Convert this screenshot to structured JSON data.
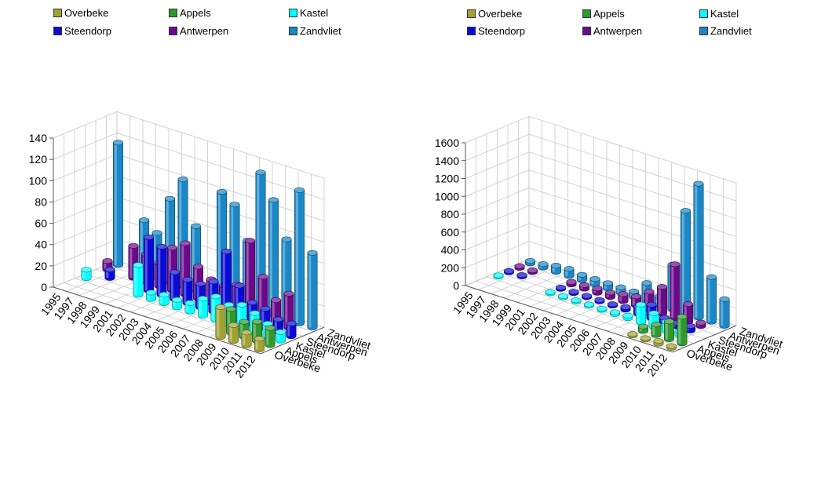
{
  "series_colors": {
    "Overbeke": "#a2a232",
    "Appels": "#2e9a2e",
    "Kastel": "#00ffff",
    "Steendorp": "#0a0ad6",
    "Antwerpen": "#6a0a8a",
    "Zandvliet": "#1a87c6"
  },
  "chart_data": [
    {
      "type": "bar",
      "subtype": "3d-cylinder",
      "legend": [
        "Overbeke",
        "Appels",
        "Kastel",
        "Steendorp",
        "Antwerpen",
        "Zandvliet"
      ],
      "legend_position": "top",
      "x_categories": [
        "1995",
        "1997",
        "1998",
        "1999",
        "2001",
        "2002",
        "2003",
        "2004",
        "2005",
        "2006",
        "2007",
        "2008",
        "2009",
        "2010",
        "2011",
        "2012"
      ],
      "depth_categories": [
        "Overbeke",
        "Appels",
        "Kastel",
        "Steendorp",
        "Antwerpen",
        "Zandvliet"
      ],
      "y_ticks": [
        0,
        20,
        40,
        60,
        80,
        100,
        120,
        140
      ],
      "ylim": [
        0,
        140
      ],
      "grid": true,
      "series": [
        {
          "name": "Overbeke",
          "values": [
            null,
            null,
            null,
            null,
            null,
            null,
            null,
            null,
            null,
            null,
            null,
            null,
            28,
            15,
            12,
            10
          ]
        },
        {
          "name": "Appels",
          "values": [
            null,
            null,
            null,
            null,
            null,
            null,
            null,
            null,
            null,
            null,
            null,
            null,
            22,
            14,
            18,
            16
          ]
        },
        {
          "name": "Kastel",
          "values": [
            8,
            null,
            null,
            null,
            28,
            6,
            8,
            7,
            8,
            16,
            22,
            18,
            22,
            18,
            12,
            8
          ]
        },
        {
          "name": "Steendorp",
          "values": [
            null,
            8,
            null,
            null,
            50,
            45,
            25,
            22,
            22,
            28,
            60,
            32,
            20,
            18,
            12,
            12
          ]
        },
        {
          "name": "Antwerpen",
          "values": [
            8,
            null,
            30,
            26,
            22,
            40,
            48,
            30,
            22,
            20,
            25,
            70,
            40,
            22,
            32,
            null
          ]
        },
        {
          "name": "Zandvliet",
          "values": [
            115,
            null,
            50,
            42,
            78,
            100,
            60,
            null,
            100,
            92,
            62,
            130,
            108,
            75,
            125,
            70
          ]
        }
      ]
    },
    {
      "type": "bar",
      "subtype": "3d-cylinder",
      "legend": [
        "Overbeke",
        "Appels",
        "Kastel",
        "Steendorp",
        "Antwerpen",
        "Zandvliet"
      ],
      "legend_position": "top",
      "x_categories": [
        "1995",
        "1997",
        "1998",
        "1999",
        "2001",
        "2002",
        "2003",
        "2004",
        "2005",
        "2006",
        "2007",
        "2008",
        "2009",
        "2010",
        "2011",
        "2012"
      ],
      "depth_categories": [
        "Overbeke",
        "Appels",
        "Kastel",
        "Steendorp",
        "Antwerpen",
        "Zandvliet"
      ],
      "y_ticks": [
        0,
        200,
        400,
        600,
        800,
        1000,
        1200,
        1400,
        1600
      ],
      "ylim": [
        0,
        1600
      ],
      "grid": true,
      "series": [
        {
          "name": "Overbeke",
          "values": [
            null,
            null,
            null,
            null,
            null,
            null,
            null,
            null,
            null,
            null,
            null,
            null,
            15,
            15,
            30,
            20
          ]
        },
        {
          "name": "Appels",
          "values": [
            null,
            null,
            null,
            null,
            null,
            null,
            null,
            null,
            null,
            null,
            null,
            null,
            50,
            120,
            200,
            300
          ]
        },
        {
          "name": "Kastel",
          "values": [
            15,
            null,
            null,
            null,
            15,
            15,
            15,
            15,
            15,
            20,
            30,
            200,
            150,
            100,
            40,
            null
          ]
        },
        {
          "name": "Steendorp",
          "values": [
            15,
            15,
            null,
            null,
            15,
            15,
            15,
            15,
            15,
            30,
            80,
            150,
            50,
            40,
            50,
            null
          ]
        },
        {
          "name": "Antwerpen",
          "values": [
            20,
            20,
            null,
            null,
            30,
            40,
            50,
            50,
            80,
            100,
            200,
            300,
            600,
            200,
            40,
            null
          ]
        },
        {
          "name": "Zandvliet",
          "values": [
            30,
            40,
            70,
            80,
            60,
            60,
            60,
            60,
            60,
            200,
            100,
            500,
            1150,
            1500,
            500,
            300
          ]
        }
      ]
    }
  ]
}
